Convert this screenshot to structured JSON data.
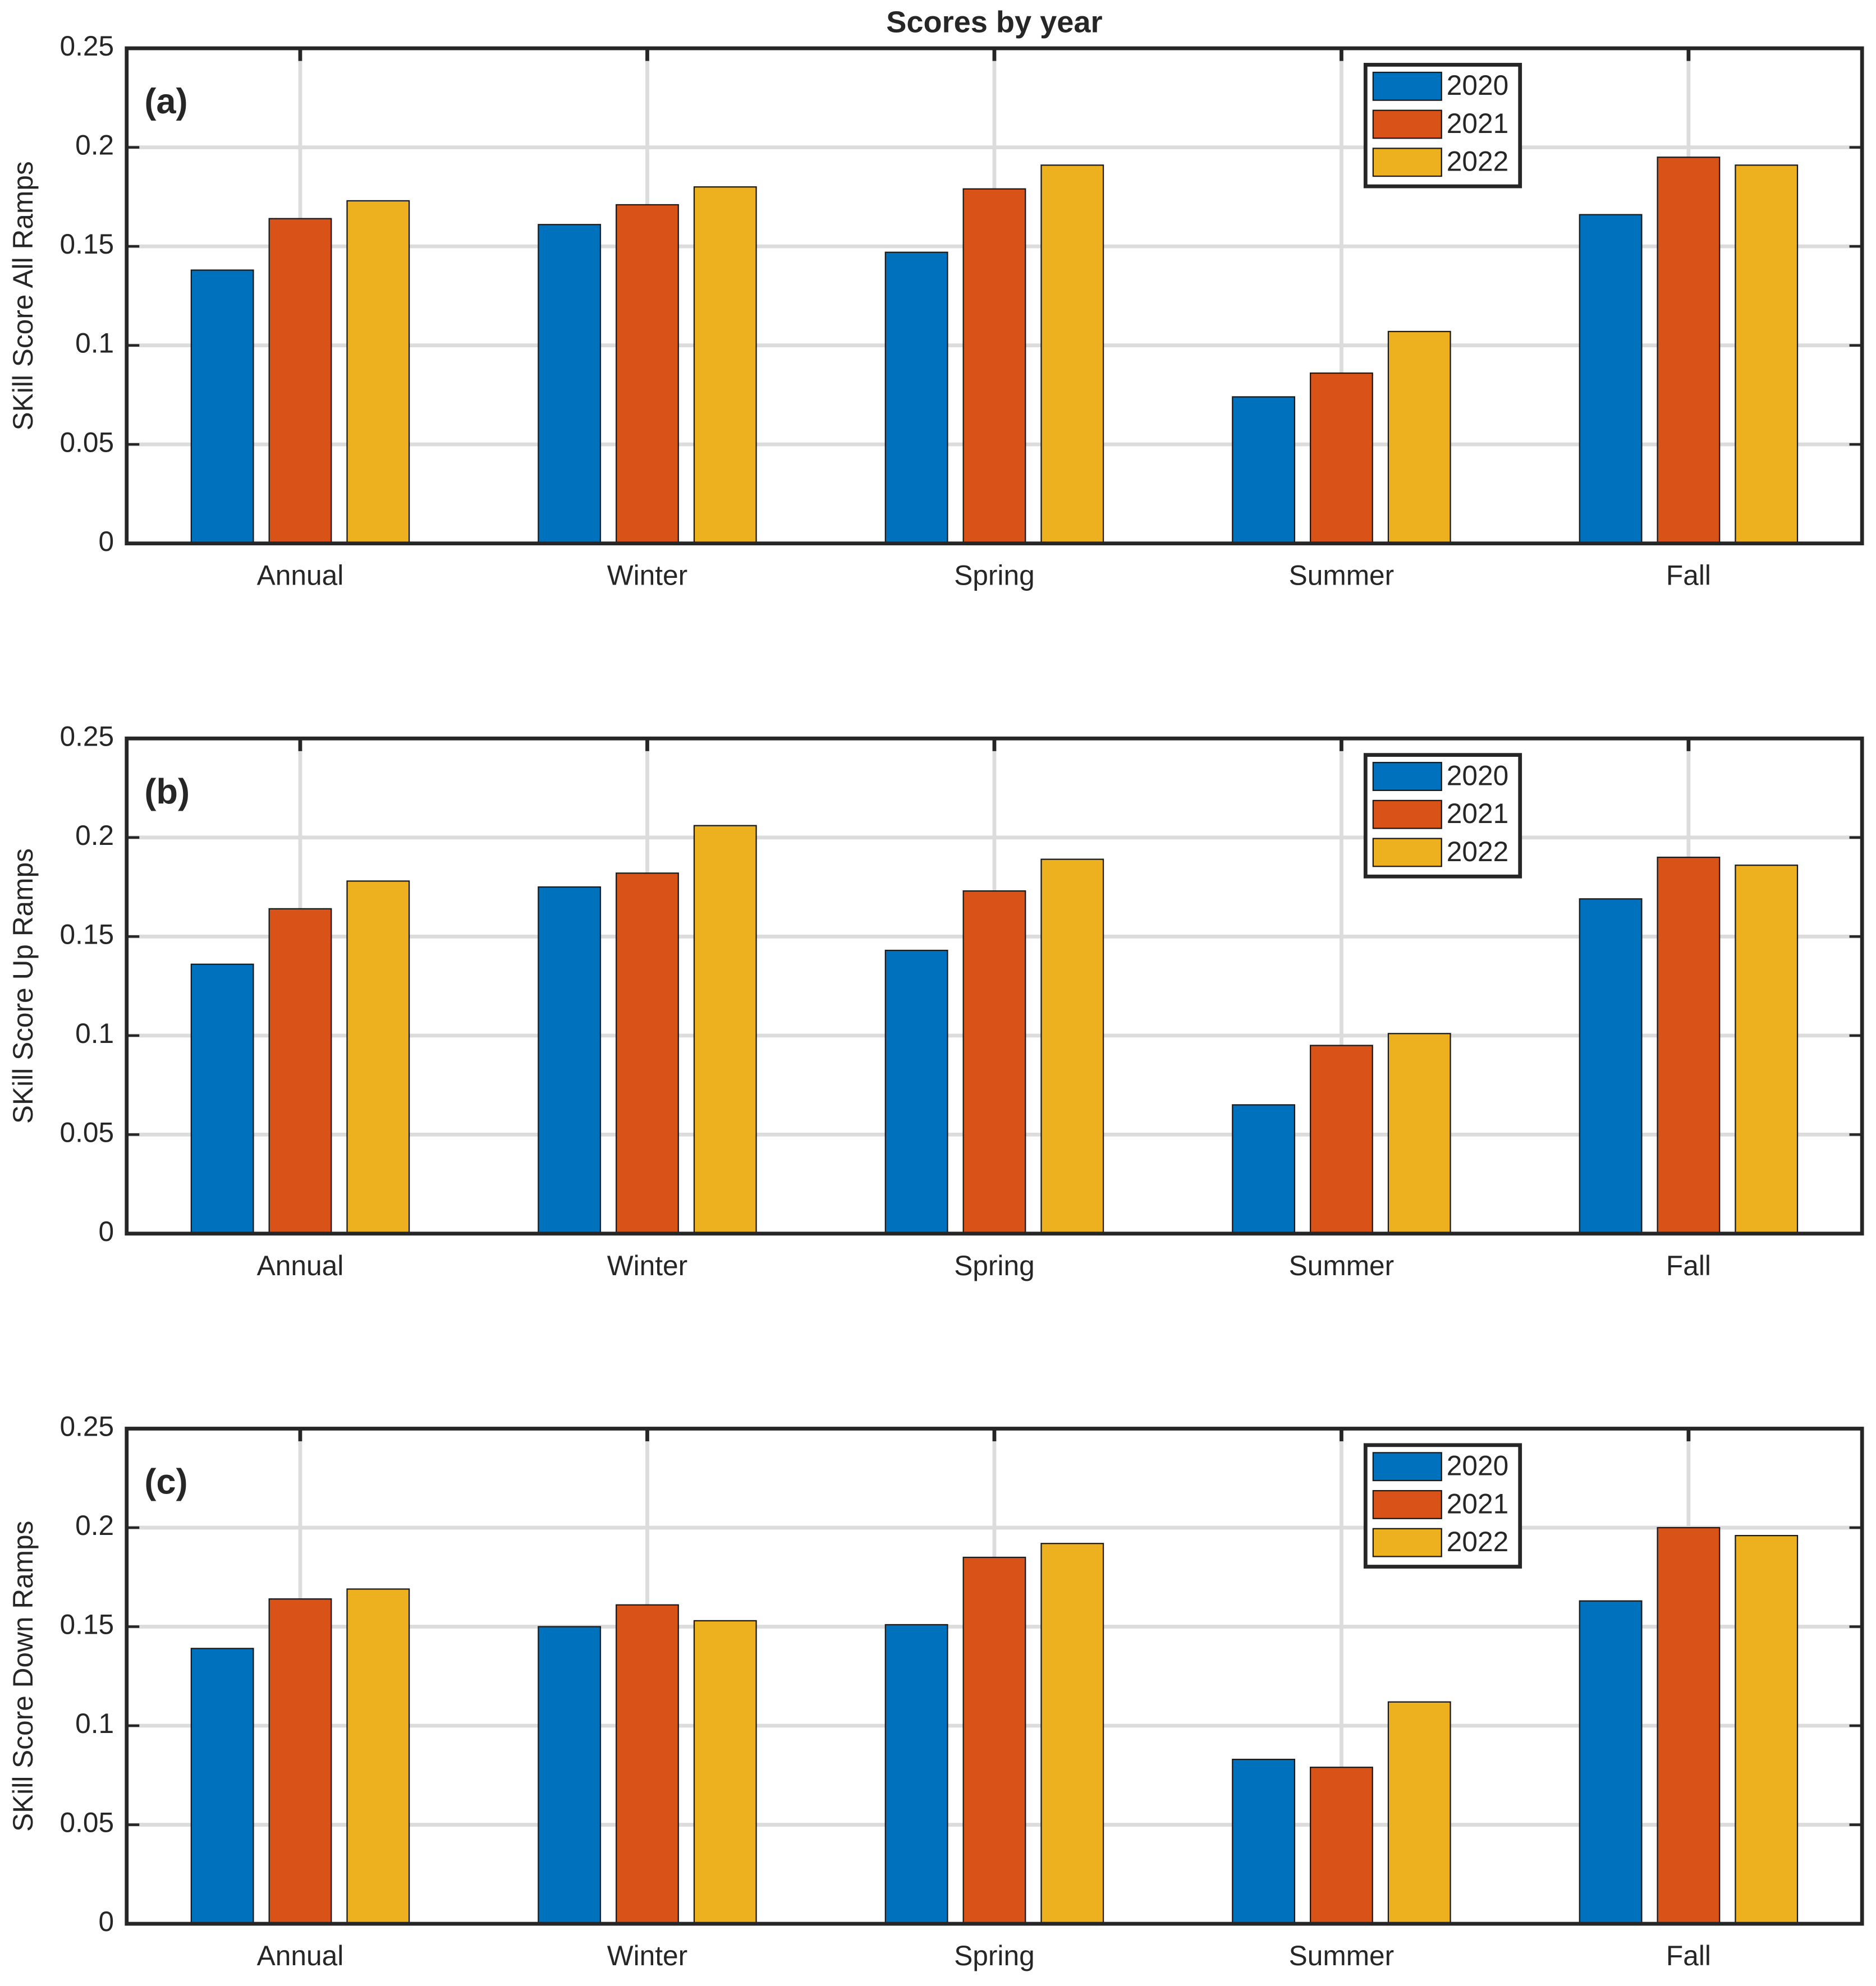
{
  "chart_data": [
    {
      "type": "bar",
      "title": "Scores by year",
      "annotation": "(a)",
      "ylabel": "SKill Score All Ramps",
      "categories": [
        "Annual",
        "Winter",
        "Spring",
        "Summer",
        "Fall"
      ],
      "series": [
        {
          "name": "2020",
          "color": "#0072bd",
          "values": [
            0.138,
            0.161,
            0.147,
            0.074,
            0.166
          ]
        },
        {
          "name": "2021",
          "color": "#d95319",
          "values": [
            0.164,
            0.171,
            0.179,
            0.086,
            0.195
          ]
        },
        {
          "name": "2022",
          "color": "#edb120",
          "values": [
            0.173,
            0.18,
            0.191,
            0.107,
            0.191
          ]
        }
      ],
      "ylim": [
        0,
        0.25
      ],
      "yticks": [
        0,
        0.05,
        0.1,
        0.15,
        0.2,
        0.25
      ],
      "grid": true,
      "legend": "northeast"
    },
    {
      "type": "bar",
      "annotation": "(b)",
      "ylabel": "SKill Score Up Ramps",
      "categories": [
        "Annual",
        "Winter",
        "Spring",
        "Summer",
        "Fall"
      ],
      "series": [
        {
          "name": "2020",
          "color": "#0072bd",
          "values": [
            0.136,
            0.175,
            0.143,
            0.065,
            0.169
          ]
        },
        {
          "name": "2021",
          "color": "#d95319",
          "values": [
            0.164,
            0.182,
            0.173,
            0.095,
            0.19
          ]
        },
        {
          "name": "2022",
          "color": "#edb120",
          "values": [
            0.178,
            0.206,
            0.189,
            0.101,
            0.186
          ]
        }
      ],
      "ylim": [
        0,
        0.25
      ],
      "yticks": [
        0,
        0.05,
        0.1,
        0.15,
        0.2,
        0.25
      ],
      "grid": true,
      "legend": "northeast"
    },
    {
      "type": "bar",
      "annotation": "(c)",
      "ylabel": "SKill Score Down Ramps",
      "categories": [
        "Annual",
        "Winter",
        "Spring",
        "Summer",
        "Fall"
      ],
      "series": [
        {
          "name": "2020",
          "color": "#0072bd",
          "values": [
            0.139,
            0.15,
            0.151,
            0.083,
            0.163
          ]
        },
        {
          "name": "2021",
          "color": "#d95319",
          "values": [
            0.164,
            0.161,
            0.185,
            0.079,
            0.2
          ]
        },
        {
          "name": "2022",
          "color": "#edb120",
          "values": [
            0.169,
            0.153,
            0.192,
            0.112,
            0.196
          ]
        }
      ],
      "ylim": [
        0,
        0.25
      ],
      "yticks": [
        0,
        0.05,
        0.1,
        0.15,
        0.2,
        0.25
      ],
      "grid": true,
      "legend": "northeast"
    }
  ]
}
